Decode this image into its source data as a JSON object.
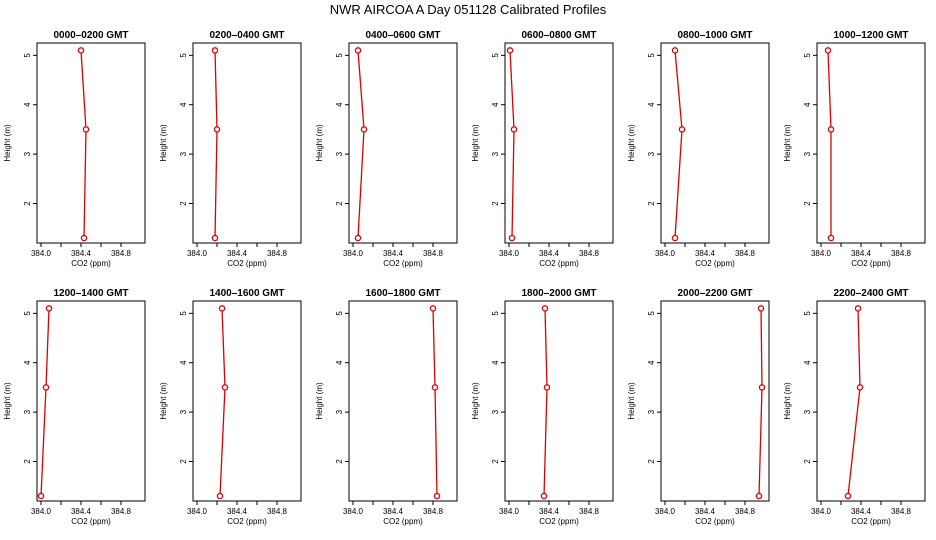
{
  "figure": {
    "title": "NWR AIRCOA A  Day 051128  Calibrated Profiles"
  },
  "colors": {
    "series": "#dd0000",
    "axis": "#000000",
    "background": "#ffffff"
  },
  "chart_data": [
    {
      "type": "line",
      "title": "0000–0200 GMT",
      "xlabel": "CO2 (ppm)",
      "ylabel": "Height (m)",
      "xlim": [
        383.96,
        385.04
      ],
      "ylim": [
        1.2,
        5.25
      ],
      "xticks": [
        384.0,
        384.2,
        384.4,
        384.6,
        384.8
      ],
      "xticklabels": [
        "384.0",
        "",
        "384.4",
        "",
        "384.8"
      ],
      "yticks": [
        2,
        3,
        4,
        5
      ],
      "yticklabels": [
        "2",
        "3",
        "4",
        "5"
      ],
      "x": [
        384.43,
        384.45,
        384.4
      ],
      "y": [
        1.3,
        3.5,
        5.1
      ]
    },
    {
      "type": "line",
      "title": "0200–0400 GMT",
      "xlabel": "CO2 (ppm)",
      "ylabel": "Height (m)",
      "xlim": [
        383.96,
        385.04
      ],
      "ylim": [
        1.2,
        5.25
      ],
      "xticks": [
        384.0,
        384.2,
        384.4,
        384.6,
        384.8
      ],
      "xticklabels": [
        "384.0",
        "",
        "384.4",
        "",
        "384.8"
      ],
      "yticks": [
        2,
        3,
        4,
        5
      ],
      "yticklabels": [
        "2",
        "3",
        "4",
        "5"
      ],
      "x": [
        384.18,
        384.2,
        384.18
      ],
      "y": [
        1.3,
        3.5,
        5.1
      ]
    },
    {
      "type": "line",
      "title": "0400–0600 GMT",
      "xlabel": "CO2 (ppm)",
      "ylabel": "Height (m)",
      "xlim": [
        383.96,
        385.04
      ],
      "ylim": [
        1.2,
        5.25
      ],
      "xticks": [
        384.0,
        384.2,
        384.4,
        384.6,
        384.8
      ],
      "xticklabels": [
        "384.0",
        "",
        "384.4",
        "",
        "384.8"
      ],
      "yticks": [
        2,
        3,
        4,
        5
      ],
      "yticklabels": [
        "2",
        "3",
        "4",
        "5"
      ],
      "x": [
        384.05,
        384.11,
        384.05
      ],
      "y": [
        1.3,
        3.5,
        5.1
      ]
    },
    {
      "type": "line",
      "title": "0600–0800 GMT",
      "xlabel": "CO2 (ppm)",
      "ylabel": "Height (m)",
      "xlim": [
        383.96,
        385.04
      ],
      "ylim": [
        1.2,
        5.25
      ],
      "xticks": [
        384.0,
        384.2,
        384.4,
        384.6,
        384.8
      ],
      "xticklabels": [
        "384.0",
        "",
        "384.4",
        "",
        "384.8"
      ],
      "yticks": [
        2,
        3,
        4,
        5
      ],
      "yticklabels": [
        "2",
        "3",
        "4",
        "5"
      ],
      "x": [
        384.03,
        384.05,
        384.01
      ],
      "y": [
        1.3,
        3.5,
        5.1
      ]
    },
    {
      "type": "line",
      "title": "0800–1000 GMT",
      "xlabel": "CO2 (ppm)",
      "ylabel": "Height (m)",
      "xlim": [
        383.96,
        385.04
      ],
      "ylim": [
        1.2,
        5.25
      ],
      "xticks": [
        384.0,
        384.2,
        384.4,
        384.6,
        384.8
      ],
      "xticklabels": [
        "384.0",
        "",
        "384.4",
        "",
        "384.8"
      ],
      "yticks": [
        2,
        3,
        4,
        5
      ],
      "yticklabels": [
        "2",
        "3",
        "4",
        "5"
      ],
      "x": [
        384.1,
        384.17,
        384.1
      ],
      "y": [
        1.3,
        3.5,
        5.1
      ]
    },
    {
      "type": "line",
      "title": "1000–1200 GMT",
      "xlabel": "CO2 (ppm)",
      "ylabel": "Height (m)",
      "xlim": [
        383.96,
        385.04
      ],
      "ylim": [
        1.2,
        5.25
      ],
      "xticks": [
        384.0,
        384.2,
        384.4,
        384.6,
        384.8
      ],
      "xticklabels": [
        "384.0",
        "",
        "384.4",
        "",
        "384.8"
      ],
      "yticks": [
        2,
        3,
        4,
        5
      ],
      "yticklabels": [
        "2",
        "3",
        "4",
        "5"
      ],
      "x": [
        384.1,
        384.1,
        384.07
      ],
      "y": [
        1.3,
        3.5,
        5.1
      ]
    },
    {
      "type": "line",
      "title": "1200–1400 GMT",
      "xlabel": "CO2 (ppm)",
      "ylabel": "Height (m)",
      "xlim": [
        383.96,
        385.04
      ],
      "ylim": [
        1.2,
        5.25
      ],
      "xticks": [
        384.0,
        384.2,
        384.4,
        384.6,
        384.8
      ],
      "xticklabels": [
        "384.0",
        "",
        "384.4",
        "",
        "384.8"
      ],
      "yticks": [
        2,
        3,
        4,
        5
      ],
      "yticklabels": [
        "2",
        "3",
        "4",
        "5"
      ],
      "x": [
        384.0,
        384.05,
        384.08
      ],
      "y": [
        1.3,
        3.5,
        5.1
      ]
    },
    {
      "type": "line",
      "title": "1400–1600 GMT",
      "xlabel": "CO2 (ppm)",
      "ylabel": "Height (m)",
      "xlim": [
        383.96,
        385.04
      ],
      "ylim": [
        1.2,
        5.25
      ],
      "xticks": [
        384.0,
        384.2,
        384.4,
        384.6,
        384.8
      ],
      "xticklabels": [
        "384.0",
        "",
        "384.4",
        "",
        "384.8"
      ],
      "yticks": [
        2,
        3,
        4,
        5
      ],
      "yticklabels": [
        "2",
        "3",
        "4",
        "5"
      ],
      "x": [
        384.23,
        384.28,
        384.25
      ],
      "y": [
        1.3,
        3.5,
        5.1
      ]
    },
    {
      "type": "line",
      "title": "1600–1800 GMT",
      "xlabel": "CO2 (ppm)",
      "ylabel": "Height (m)",
      "xlim": [
        383.96,
        385.04
      ],
      "ylim": [
        1.2,
        5.25
      ],
      "xticks": [
        384.0,
        384.2,
        384.4,
        384.6,
        384.8
      ],
      "xticklabels": [
        "384.0",
        "",
        "384.4",
        "",
        "384.8"
      ],
      "yticks": [
        2,
        3,
        4,
        5
      ],
      "yticklabels": [
        "2",
        "3",
        "4",
        "5"
      ],
      "x": [
        384.84,
        384.82,
        384.8
      ],
      "y": [
        1.3,
        3.5,
        5.1
      ]
    },
    {
      "type": "line",
      "title": "1800–2000 GMT",
      "xlabel": "CO2 (ppm)",
      "ylabel": "Height (m)",
      "xlim": [
        383.96,
        385.04
      ],
      "ylim": [
        1.2,
        5.25
      ],
      "xticks": [
        384.0,
        384.2,
        384.4,
        384.6,
        384.8
      ],
      "xticklabels": [
        "384.0",
        "",
        "384.4",
        "",
        "384.8"
      ],
      "yticks": [
        2,
        3,
        4,
        5
      ],
      "yticklabels": [
        "2",
        "3",
        "4",
        "5"
      ],
      "x": [
        384.35,
        384.38,
        384.36
      ],
      "y": [
        1.3,
        3.5,
        5.1
      ]
    },
    {
      "type": "line",
      "title": "2000–2200 GMT",
      "xlabel": "CO2 (ppm)",
      "ylabel": "Height (m)",
      "xlim": [
        383.96,
        385.04
      ],
      "ylim": [
        1.2,
        5.25
      ],
      "xticks": [
        384.0,
        384.2,
        384.4,
        384.6,
        384.8
      ],
      "xticklabels": [
        "384.0",
        "",
        "384.4",
        "",
        "384.8"
      ],
      "yticks": [
        2,
        3,
        4,
        5
      ],
      "yticklabels": [
        "2",
        "3",
        "4",
        "5"
      ],
      "x": [
        384.94,
        384.97,
        384.96
      ],
      "y": [
        1.3,
        3.5,
        5.1
      ]
    },
    {
      "type": "line",
      "title": "2200–2400 GMT",
      "xlabel": "CO2 (ppm)",
      "ylabel": "Height (m)",
      "xlim": [
        383.96,
        385.04
      ],
      "ylim": [
        1.2,
        5.25
      ],
      "xticks": [
        384.0,
        384.2,
        384.4,
        384.6,
        384.8
      ],
      "xticklabels": [
        "384.0",
        "",
        "384.4",
        "",
        "384.8"
      ],
      "yticks": [
        2,
        3,
        4,
        5
      ],
      "yticklabels": [
        "2",
        "3",
        "4",
        "5"
      ],
      "x": [
        384.27,
        384.39,
        384.37
      ],
      "y": [
        1.3,
        3.5,
        5.1
      ]
    }
  ]
}
